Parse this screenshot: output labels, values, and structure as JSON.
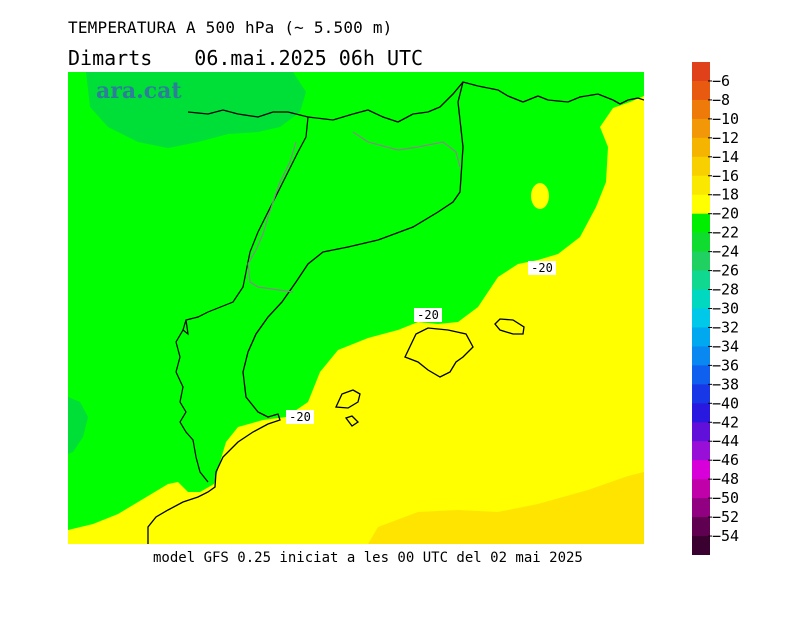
{
  "header": {
    "title": "TEMPERATURA A 500 hPa (~ 5.500 m)",
    "day": "Dimarts",
    "datetime": "06.mai.2025 06h UTC"
  },
  "logo": "ara.cat",
  "footer": "model GFS 0.25 iniciat a les 00 UTC del 02 mai 2025",
  "contour_labels": [
    "-20",
    "-20",
    "-20"
  ],
  "colorbar": {
    "labels": [
      "−6",
      "−8",
      "−10",
      "−12",
      "−14",
      "−16",
      "−18",
      "−20",
      "−22",
      "−24",
      "−26",
      "−28",
      "−30",
      "−32",
      "−34",
      "−36",
      "−38",
      "−40",
      "−42",
      "−44",
      "−46",
      "−48",
      "−50",
      "−52",
      "−54"
    ],
    "colors": [
      "#e0401a",
      "#e85a10",
      "#ee7a0a",
      "#f29808",
      "#f5b400",
      "#f8d000",
      "#fbe800",
      "#ffff00",
      "#00ee00",
      "#10dc30",
      "#20d060",
      "#10d890",
      "#00d8c0",
      "#00c8e8",
      "#00a8f0",
      "#0888f0",
      "#1060f0",
      "#1838e8",
      "#2818e0",
      "#6010d8",
      "#9810d8",
      "#d800d8",
      "#c000a8",
      "#900080",
      "#600050",
      "#3a0030"
    ]
  },
  "colors": {
    "yellow_fill": "#ffff00",
    "dark_yellow_fill": "#ffe400",
    "green_fill": "#00ff00",
    "dark_green_fill": "#00de38",
    "coast_line": "#000000",
    "border_line": "#888888"
  }
}
